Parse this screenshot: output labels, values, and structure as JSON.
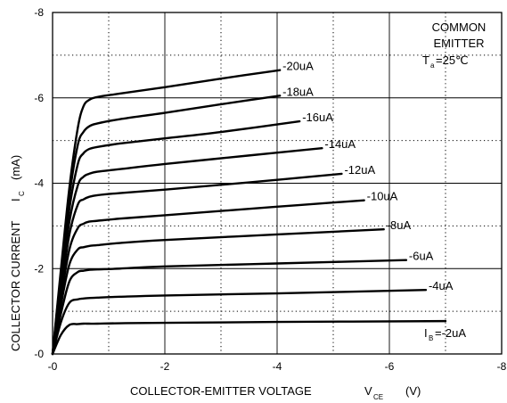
{
  "chart_data": {
    "type": "line",
    "title": "",
    "annotation": {
      "line1": "COMMON",
      "line2": "EMITTER",
      "temp_prefix": "T",
      "temp_sub": "a",
      "temp_value": "=25℃"
    },
    "xlabel": "COLLECTOR-EMITTER VOLTAGE",
    "xlabel_symbol": "V",
    "xlabel_sub": "CE",
    "xlabel_unit": "(V)",
    "ylabel": "COLLECTOR CURRENT",
    "ylabel_symbol": "I",
    "ylabel_sub": "C",
    "ylabel_unit": "(mA)",
    "xlim": [
      0,
      -8
    ],
    "ylim": [
      0,
      -8
    ],
    "x_ticks": [
      "-0",
      "-2",
      "-4",
      "-6",
      "-8"
    ],
    "y_ticks": [
      "-0",
      "-2",
      "-4",
      "-6",
      "-8"
    ],
    "grid": "solid at -2, -4, -6; dotted at -1, -3, -5, -7",
    "series": [
      {
        "name": "-20uA",
        "label_prefix": "",
        "label_sub": "",
        "label_value": "-20uA",
        "x": [
          0,
          -0.15,
          -0.3,
          -0.45,
          -0.55,
          -0.65,
          -0.8,
          -1.2,
          -2,
          -3,
          -4.05
        ],
        "y": [
          0,
          -2.0,
          -3.9,
          -5.3,
          -5.8,
          -5.95,
          -6.02,
          -6.1,
          -6.25,
          -6.45,
          -6.65
        ]
      },
      {
        "name": "-18uA",
        "label_prefix": "",
        "label_sub": "",
        "label_value": "-18uA",
        "x": [
          0,
          -0.15,
          -0.3,
          -0.45,
          -0.55,
          -0.65,
          -0.8,
          -1.2,
          -2,
          -3,
          -4.05
        ],
        "y": [
          0,
          -1.9,
          -3.7,
          -4.9,
          -5.2,
          -5.33,
          -5.4,
          -5.5,
          -5.65,
          -5.85,
          -6.05
        ]
      },
      {
        "name": "-16uA",
        "label_prefix": "",
        "label_sub": "",
        "label_value": "-16uA",
        "x": [
          0,
          -0.15,
          -0.3,
          -0.45,
          -0.55,
          -0.65,
          -0.8,
          -1.2,
          -2,
          -3,
          -4.4
        ],
        "y": [
          0,
          -1.7,
          -3.4,
          -4.45,
          -4.7,
          -4.8,
          -4.85,
          -4.93,
          -5.05,
          -5.2,
          -5.45
        ]
      },
      {
        "name": "-14uA",
        "label_prefix": "",
        "label_sub": "",
        "label_value": "-14uA",
        "x": [
          0,
          -0.15,
          -0.3,
          -0.45,
          -0.55,
          -0.65,
          -0.8,
          -1.2,
          -2,
          -3.5,
          -4.8
        ],
        "y": [
          0,
          -1.6,
          -3.1,
          -3.95,
          -4.15,
          -4.22,
          -4.27,
          -4.33,
          -4.45,
          -4.65,
          -4.82
        ]
      },
      {
        "name": "-12uA",
        "label_prefix": "",
        "label_sub": "",
        "label_value": "-12uA",
        "x": [
          0,
          -0.15,
          -0.3,
          -0.45,
          -0.55,
          -0.65,
          -0.8,
          -1.2,
          -2,
          -3.5,
          -5.15
        ],
        "y": [
          0,
          -1.45,
          -2.8,
          -3.5,
          -3.62,
          -3.68,
          -3.72,
          -3.77,
          -3.85,
          -4.02,
          -4.22
        ]
      },
      {
        "name": "-10uA",
        "label_prefix": "",
        "label_sub": "",
        "label_value": "-10uA",
        "x": [
          0,
          -0.15,
          -0.3,
          -0.45,
          -0.55,
          -0.65,
          -0.8,
          -1.2,
          -2,
          -4,
          -5.55
        ],
        "y": [
          0,
          -1.3,
          -2.45,
          -2.95,
          -3.05,
          -3.1,
          -3.12,
          -3.17,
          -3.25,
          -3.45,
          -3.6
        ]
      },
      {
        "name": "-8uA",
        "label_prefix": "",
        "label_sub": "",
        "label_value": "-8uA",
        "x": [
          0,
          -0.15,
          -0.3,
          -0.45,
          -0.55,
          -0.65,
          -0.8,
          -1.2,
          -2,
          -4,
          -5.9
        ],
        "y": [
          0,
          -1.15,
          -2.1,
          -2.45,
          -2.5,
          -2.53,
          -2.55,
          -2.6,
          -2.67,
          -2.8,
          -2.92
        ]
      },
      {
        "name": "-6uA",
        "label_prefix": "",
        "label_sub": "",
        "label_value": "-6uA",
        "x": [
          0,
          -0.15,
          -0.3,
          -0.45,
          -0.55,
          -0.65,
          -0.8,
          -1.2,
          -2,
          -4,
          -6.3
        ],
        "y": [
          0,
          -0.95,
          -1.7,
          -1.92,
          -1.95,
          -1.97,
          -1.98,
          -2.0,
          -2.05,
          -2.12,
          -2.2
        ]
      },
      {
        "name": "-4uA",
        "label_prefix": "",
        "label_sub": "",
        "label_value": "-4uA",
        "x": [
          0,
          -0.15,
          -0.3,
          -0.45,
          -0.55,
          -0.65,
          -0.8,
          -1.2,
          -2,
          -4,
          -6.65
        ],
        "y": [
          0,
          -0.75,
          -1.2,
          -1.28,
          -1.3,
          -1.31,
          -1.32,
          -1.34,
          -1.37,
          -1.42,
          -1.5
        ]
      },
      {
        "name": "IB=-2uA",
        "label_prefix": "I",
        "label_sub": "B",
        "label_value": "=-2uA",
        "x": [
          0,
          -0.15,
          -0.3,
          -0.45,
          -0.55,
          -0.65,
          -0.8,
          -1.2,
          -2,
          -4,
          -7.0
        ],
        "y": [
          0,
          -0.45,
          -0.68,
          -0.7,
          -0.71,
          -0.71,
          -0.71,
          -0.72,
          -0.73,
          -0.75,
          -0.77
        ]
      }
    ]
  }
}
